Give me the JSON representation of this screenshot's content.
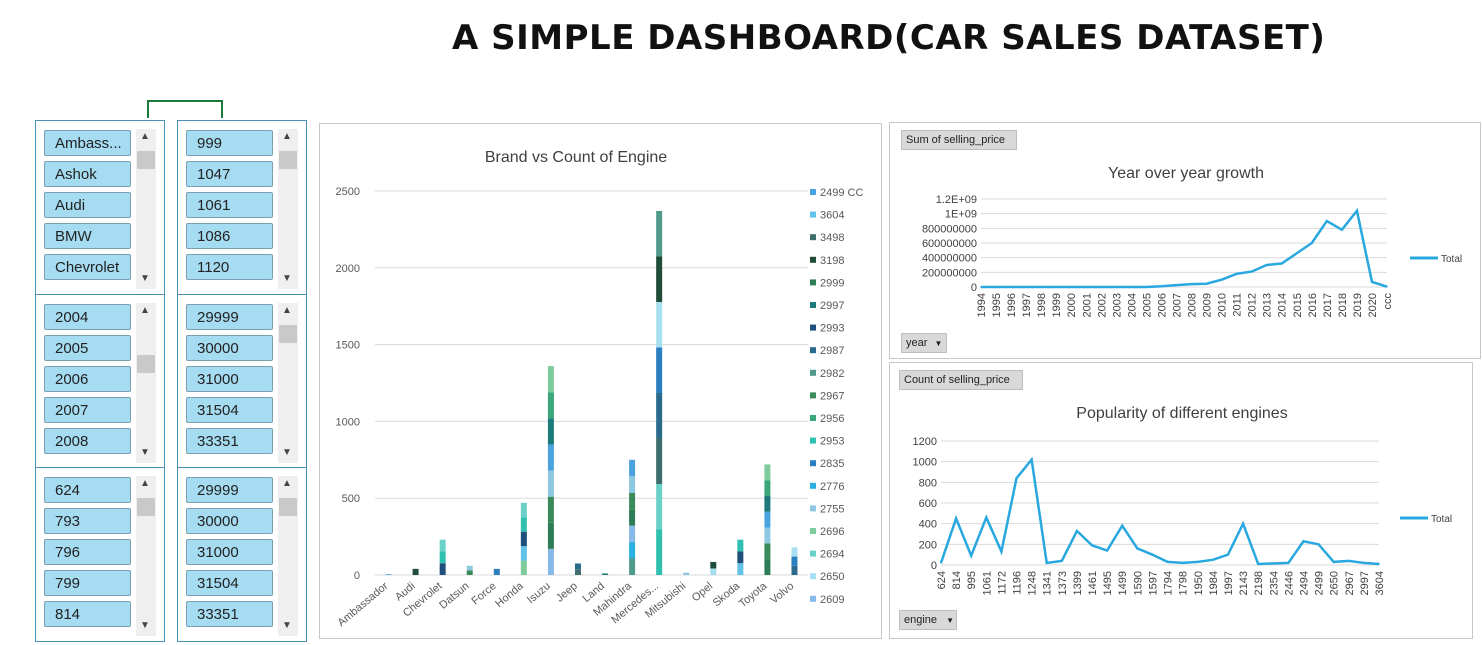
{
  "title": "A SIMPLE DASHBOARD(CAR SALES DATASET)",
  "slicers": [
    {
      "items": [
        "Ambass...",
        "Ashok",
        "Audi",
        "BMW",
        "Chevrolet"
      ]
    },
    {
      "items": [
        "999",
        "1047",
        "1061",
        "1086",
        "1120"
      ]
    },
    {
      "items": [
        "2004",
        "2005",
        "2006",
        "2007",
        "2008"
      ]
    },
    {
      "items": [
        "29999",
        "30000",
        "31000",
        "31504",
        "33351"
      ]
    },
    {
      "items": [
        "624",
        "793",
        "796",
        "799",
        "814"
      ]
    },
    {
      "items": [
        "29999",
        "30000",
        "31000",
        "31504",
        "33351"
      ]
    }
  ],
  "brand_chart": {
    "title": "Brand vs Count of Engine",
    "legend": [
      "2499 CC",
      "3604",
      "3498",
      "3198",
      "2999",
      "2997",
      "2993",
      "2987",
      "2982",
      "2967",
      "2956",
      "2953",
      "2835",
      "2776",
      "2755",
      "2696",
      "2694",
      "2650",
      "2609"
    ],
    "legend_colors": [
      "#4aa3df",
      "#62c3e8",
      "#3f6e6e",
      "#1f4d3a",
      "#2e7d56",
      "#1e7b7b",
      "#1f4f7a",
      "#2a6b8c",
      "#4f9a8a",
      "#3b8a5a",
      "#3aa67a",
      "#2fc0b0",
      "#2a7fc0",
      "#2ab0e0",
      "#8ec8e0",
      "#7ecb9c",
      "#6ad1c8",
      "#a8dff0",
      "#86b8e8"
    ]
  },
  "yoy_chart": {
    "field_button": "Sum of selling_price",
    "title": "Year over year growth",
    "filter_button": "year",
    "legend": "Total"
  },
  "engine_chart": {
    "field_button": "Count of selling_price",
    "title": "Popularity of different engines",
    "filter_button": "engine",
    "legend": "Total"
  },
  "chart_data": [
    {
      "type": "bar",
      "title": "Brand vs Count of Engine",
      "categories": [
        "Ambassador",
        "Audi",
        "Chevrolet",
        "Datsun",
        "Force",
        "Honda",
        "Isuzu",
        "Jeep",
        "Land",
        "Mahindra",
        "Mercedes...",
        "Mitsubishi",
        "Opel",
        "Skoda",
        "Toyota",
        "Volvo"
      ],
      "values": [
        5,
        40,
        230,
        60,
        40,
        470,
        1360,
        75,
        10,
        750,
        2370,
        15,
        85,
        230,
        720,
        180
      ],
      "ylim": [
        0,
        2500
      ],
      "yticks": [
        0,
        500,
        1000,
        1500,
        2000,
        2500
      ]
    },
    {
      "type": "line",
      "title": "Year over year growth",
      "x": [
        "1994",
        "1995",
        "1996",
        "1997",
        "1998",
        "1999",
        "2000",
        "2001",
        "2002",
        "2003",
        "2004",
        "2005",
        "2006",
        "2007",
        "2008",
        "2009",
        "2010",
        "2011",
        "2012",
        "2013",
        "2014",
        "2015",
        "2016",
        "2017",
        "2018",
        "2019",
        "2020",
        "ccc"
      ],
      "series": [
        {
          "name": "Total",
          "values": [
            0,
            0,
            0,
            0,
            0,
            0,
            0,
            0,
            0,
            0,
            0,
            0,
            10000000,
            25000000,
            40000000,
            45000000,
            100000000,
            180000000,
            210000000,
            300000000,
            320000000,
            460000000,
            600000000,
            900000000,
            780000000,
            1040000000,
            70000000,
            5000000
          ]
        }
      ],
      "ylim": [
        0,
        1200000000
      ],
      "ytick_labels": [
        "0",
        "200000000",
        "400000000",
        "600000000",
        "800000000",
        "1E+09",
        "1.2E+09"
      ]
    },
    {
      "type": "line",
      "title": "Popularity of different engines",
      "x": [
        "624",
        "814",
        "995",
        "1061",
        "1172",
        "1196",
        "1248",
        "1341",
        "1373",
        "1399",
        "1461",
        "1495",
        "1499",
        "1590",
        "1597",
        "1794",
        "1798",
        "1950",
        "1984",
        "1997",
        "2143",
        "2198",
        "2354",
        "2446",
        "2494",
        "2499",
        "2650",
        "2967",
        "2997",
        "3604"
      ],
      "series": [
        {
          "name": "Total",
          "values": [
            20,
            450,
            90,
            460,
            130,
            840,
            1020,
            20,
            40,
            330,
            190,
            140,
            380,
            160,
            100,
            30,
            20,
            30,
            50,
            100,
            400,
            10,
            15,
            20,
            230,
            200,
            30,
            40,
            20,
            10
          ]
        }
      ],
      "ylim": [
        0,
        1200
      ],
      "yticks": [
        0,
        200,
        400,
        600,
        800,
        1000,
        1200
      ]
    }
  ]
}
